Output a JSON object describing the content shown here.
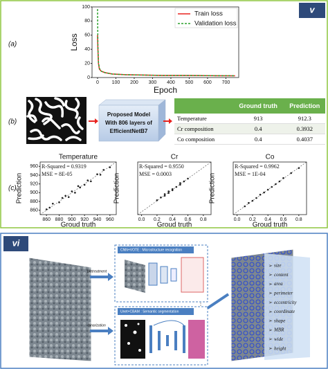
{
  "panel_labels": [
    "v",
    "vi",
    "(a)",
    "(b)",
    "(c)"
  ],
  "chart_data": [
    {
      "type": "line",
      "xlabel": "Epoch",
      "ylabel": "Loss",
      "x": [
        0,
        2,
        5,
        10,
        20,
        40,
        80,
        150,
        250,
        350,
        450,
        550,
        650,
        750
      ],
      "series": [
        {
          "name": "Train loss",
          "color": "#e8231f",
          "line_style": "solid",
          "values": [
            60,
            40,
            20,
            12,
            9,
            7,
            5,
            4,
            3.5,
            3,
            3,
            2.8,
            2.6,
            2.5
          ]
        },
        {
          "name": "Validation loss",
          "color": "#2ca02c",
          "line_style": "dashed",
          "values": [
            97,
            45,
            22,
            13,
            9,
            7,
            5,
            4,
            3.5,
            3,
            3,
            2.8,
            2.6,
            2.5
          ]
        }
      ],
      "xlim": [
        -30,
        770
      ],
      "ylim": [
        0,
        100
      ],
      "xticks": [
        0,
        100,
        200,
        300,
        400,
        500,
        600,
        700
      ],
      "yticks": [
        0,
        20,
        40,
        60,
        80,
        100
      ],
      "legend": "upper right"
    },
    {
      "type": "scatter",
      "title": "Temperature",
      "xlabel": "Groud truth",
      "ylabel": "Prediction",
      "annotations": [
        "R-Squared =  0.9319",
        "MSE =  8E-05"
      ],
      "color": "#222222",
      "x": [
        860,
        865,
        870,
        880,
        885,
        890,
        895,
        900,
        905,
        910,
        913,
        920,
        925,
        930,
        940,
        945,
        950,
        960
      ],
      "values": [
        862,
        866,
        875,
        878,
        888,
        893,
        890,
        903,
        900,
        915,
        912,
        918,
        928,
        926,
        942,
        941,
        952,
        958
      ],
      "xlim": [
        850,
        970
      ],
      "ylim": [
        850,
        970
      ],
      "xticks": [
        860,
        880,
        900,
        920,
        940,
        960
      ],
      "yticks": [
        860,
        880,
        900,
        920,
        940,
        960
      ]
    },
    {
      "type": "scatter",
      "title": "Cr",
      "xlabel": "Groud truth",
      "ylabel": "Prediction",
      "annotations": [
        "R-Squared =  0.9550",
        "MSE =  0.0003"
      ],
      "color": "#222222",
      "x": [
        0.2,
        0.25,
        0.3,
        0.3,
        0.35,
        0.35,
        0.4,
        0.4,
        0.45,
        0.5,
        0.5,
        0.55,
        0.6
      ],
      "values": [
        0.21,
        0.26,
        0.29,
        0.32,
        0.34,
        0.37,
        0.39,
        0.41,
        0.45,
        0.49,
        0.52,
        0.55,
        0.6
      ],
      "xlim": [
        -0.05,
        0.9
      ],
      "ylim": [
        -0.05,
        0.9
      ],
      "xticks": [
        {
          "value": 0,
          "label": "0.0"
        },
        0.2,
        0.4,
        0.6,
        0.8
      ]
    },
    {
      "type": "scatter",
      "title": "Co",
      "xlabel": "Groud truth",
      "ylabel": "Prediction",
      "annotations": [
        "R-Squared =  0.9962",
        "MSE =  1E-04"
      ],
      "color": "#222222",
      "x": [
        0.1,
        0.15,
        0.2,
        0.25,
        0.3,
        0.35,
        0.4,
        0.45,
        0.5,
        0.55,
        0.6,
        0.7,
        0.8
      ],
      "values": [
        0.1,
        0.16,
        0.2,
        0.25,
        0.31,
        0.35,
        0.4,
        0.45,
        0.5,
        0.55,
        0.61,
        0.7,
        0.79
      ],
      "xlim": [
        -0.05,
        0.9
      ],
      "ylim": [
        -0.05,
        0.9
      ],
      "xticks": [
        {
          "value": 0,
          "label": "0.0"
        },
        0.2,
        0.4,
        0.6,
        0.8
      ]
    }
  ],
  "model": {
    "lines": [
      "Proposed Model",
      "With 806 layers of",
      "EfficientNetB7"
    ]
  },
  "table": {
    "header": [
      "Ground truth",
      "Prediction"
    ],
    "rows": [
      [
        "Temperature",
        "913",
        "912.3"
      ],
      [
        "Cr composition",
        "0.4",
        "0.3932"
      ],
      [
        "Co composition",
        "0.4",
        "0.4037"
      ]
    ]
  },
  "workflow": {
    "steps": [
      "pretreatment",
      "binarization"
    ],
    "modules": [
      "CNN+VOTE : Microstructure recognition",
      "Unet+CBAM : Semantic segmentation"
    ],
    "features": [
      "size",
      "content",
      "area",
      "perimeter",
      "eccentricity",
      "coordinate",
      "shape",
      "MBR",
      "wide",
      "height"
    ]
  }
}
